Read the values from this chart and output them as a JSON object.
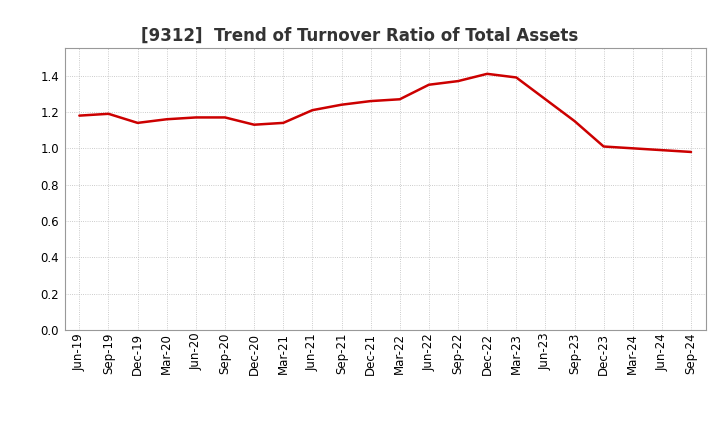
{
  "title": "[9312]  Trend of Turnover Ratio of Total Assets",
  "x_labels": [
    "Jun-19",
    "Sep-19",
    "Dec-19",
    "Mar-20",
    "Jun-20",
    "Sep-20",
    "Dec-20",
    "Mar-21",
    "Jun-21",
    "Sep-21",
    "Dec-21",
    "Mar-22",
    "Jun-22",
    "Sep-22",
    "Dec-22",
    "Mar-23",
    "Jun-23",
    "Sep-23",
    "Dec-23",
    "Mar-24",
    "Jun-24",
    "Sep-24"
  ],
  "y_values": [
    1.18,
    1.19,
    1.14,
    1.16,
    1.17,
    1.17,
    1.13,
    1.14,
    1.21,
    1.24,
    1.26,
    1.27,
    1.35,
    1.37,
    1.41,
    1.39,
    1.27,
    1.15,
    1.01,
    1.0,
    0.99,
    0.98
  ],
  "line_color": "#cc0000",
  "background_color": "#ffffff",
  "plot_bg_color": "#ffffff",
  "grid_color": "#bbbbbb",
  "ylim": [
    0.0,
    1.55
  ],
  "yticks": [
    0.0,
    0.2,
    0.4,
    0.6,
    0.8,
    1.0,
    1.2,
    1.4
  ],
  "title_fontsize": 12,
  "tick_fontsize": 8.5,
  "line_width": 1.8
}
